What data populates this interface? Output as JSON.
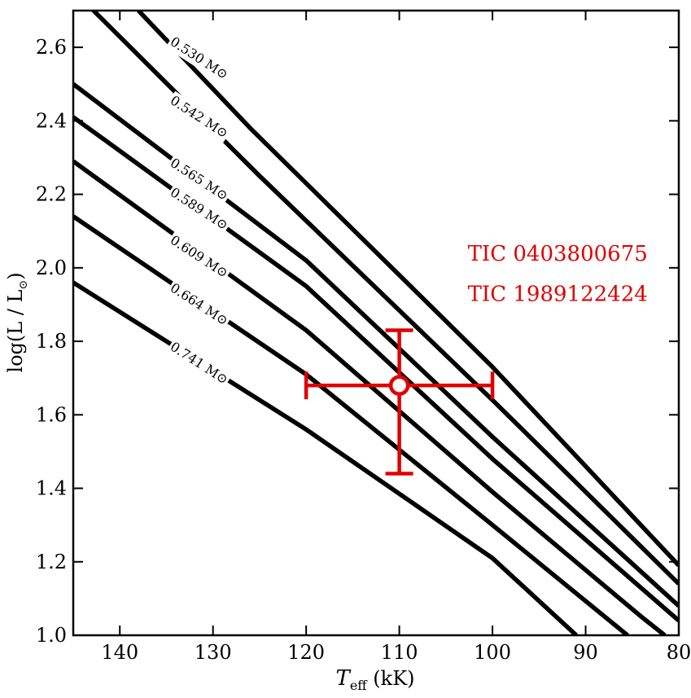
{
  "chart_data": {
    "type": "line",
    "xlabel_main": "T",
    "xlabel_sub": "eff",
    "xlabel_unit": " (kK)",
    "ylabel": "log(L / L",
    "ylabel_sun": "⊙",
    "ylabel_close": ")",
    "xlim": [
      145,
      80
    ],
    "ylim": [
      1.0,
      2.7
    ],
    "x_ticks": [
      140,
      130,
      120,
      110,
      100,
      90,
      80
    ],
    "x_tick_labels": [
      "140",
      "130",
      "120",
      "110",
      "100",
      "90",
      "80"
    ],
    "y_ticks": [
      1.0,
      1.2,
      1.4,
      1.6,
      1.8,
      2.0,
      2.2,
      2.4,
      2.6
    ],
    "y_tick_labels": [
      "1.0",
      "1.2",
      "1.4",
      "1.6",
      "1.8",
      "2.0",
      "2.2",
      "2.4",
      "2.6"
    ],
    "series": [
      {
        "name": "0.530 M⊙",
        "points": [
          [
            138.0,
            2.7
          ],
          [
            126.0,
            2.38
          ],
          [
            100.0,
            1.73
          ],
          [
            80.0,
            1.19
          ]
        ]
      },
      {
        "name": "0.542 M⊙",
        "points": [
          [
            145.0,
            2.755
          ],
          [
            125.0,
            2.25
          ],
          [
            100.0,
            1.64
          ],
          [
            80.0,
            1.14
          ]
        ]
      },
      {
        "name": "0.565 M⊙",
        "points": [
          [
            145.0,
            2.5
          ],
          [
            120.0,
            2.02
          ],
          [
            100.0,
            1.54
          ],
          [
            80.0,
            1.08
          ]
        ]
      },
      {
        "name": "0.589 M⊙",
        "points": [
          [
            145.0,
            2.41
          ],
          [
            120.0,
            1.95
          ],
          [
            100.0,
            1.48
          ],
          [
            80.0,
            1.04
          ]
        ]
      },
      {
        "name": "0.609 M⊙",
        "points": [
          [
            145.0,
            2.29
          ],
          [
            120.0,
            1.83
          ],
          [
            100.0,
            1.39
          ],
          [
            84.0,
            1.05
          ],
          [
            81.5,
            1.0
          ]
        ]
      },
      {
        "name": "0.664 M⊙",
        "points": [
          [
            145.0,
            2.14
          ],
          [
            120.0,
            1.71
          ],
          [
            100.0,
            1.3
          ],
          [
            85.5,
            1.0
          ]
        ]
      },
      {
        "name": "0.741 M⊙",
        "points": [
          [
            145.0,
            1.96
          ],
          [
            120.0,
            1.56
          ],
          [
            100.0,
            1.21
          ],
          [
            91.0,
            1.0
          ]
        ]
      }
    ],
    "label_positions": [
      {
        "text": "0.530 M⊙",
        "x": 131.5,
        "y": 2.57
      },
      {
        "text": "0.542 M⊙",
        "x": 131.5,
        "y": 2.41
      },
      {
        "text": "0.565 M⊙",
        "x": 131.5,
        "y": 2.24
      },
      {
        "text": "0.589 M⊙",
        "x": 131.5,
        "y": 2.16
      },
      {
        "text": "0.609 M⊙",
        "x": 131.5,
        "y": 2.03
      },
      {
        "text": "0.664 M⊙",
        "x": 131.5,
        "y": 1.9
      },
      {
        "text": "0.741 M⊙",
        "x": 131.5,
        "y": 1.74
      }
    ],
    "data_point": {
      "x": 110.0,
      "y": 1.68,
      "x_err_low": 10.0,
      "x_err_high": 10.0,
      "y_err_low": 0.24,
      "y_err_high": 0.15,
      "color": "#e00000"
    },
    "annotations": [
      {
        "text": "TIC 0403800675",
        "x": 93.0,
        "y": 2.02,
        "color": "#e00000"
      },
      {
        "text": "TIC 1989122424",
        "x": 93.0,
        "y": 1.91,
        "color": "#e00000"
      }
    ]
  }
}
